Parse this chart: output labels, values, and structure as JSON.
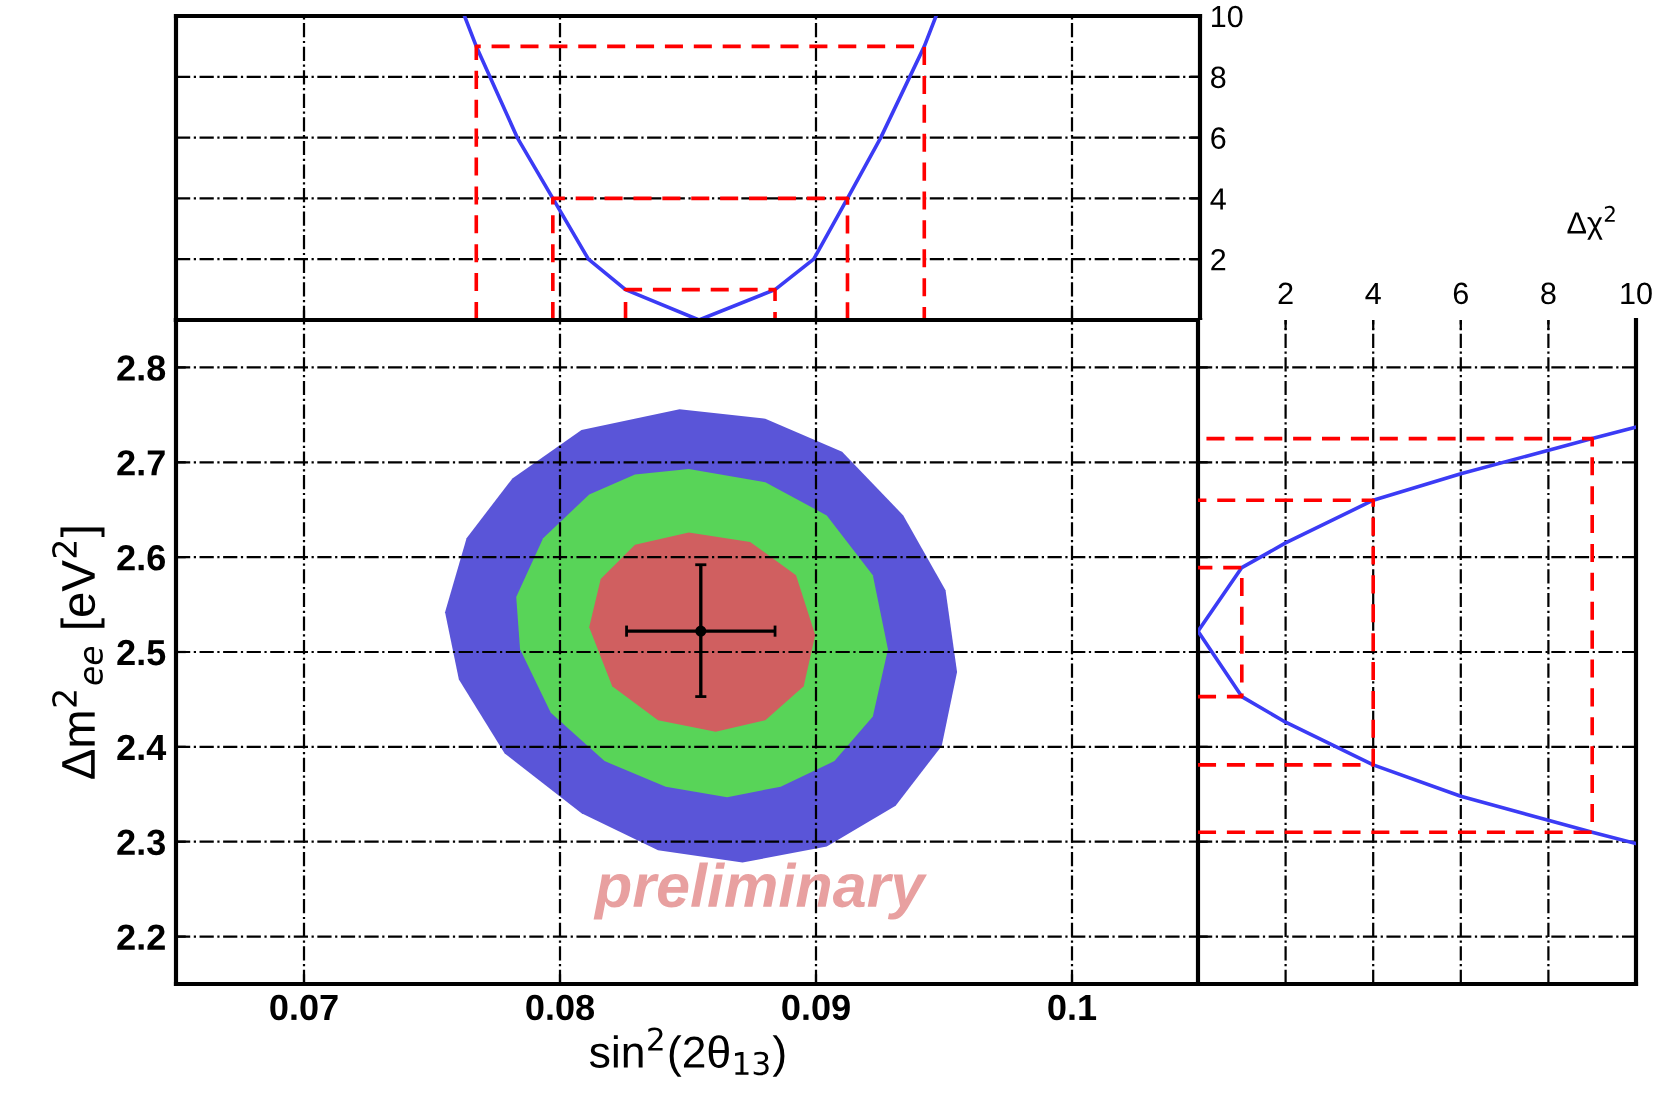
{
  "chart_data": [
    {
      "type": "line",
      "tick_labels": "y",
      "grid": true,
      "legend": false,
      "xlim": [
        0.065,
        0.105
      ],
      "xticks": [
        {
          "value": 0.07,
          "label": null
        },
        {
          "value": 0.08,
          "label": null
        },
        {
          "value": 0.09,
          "label": null
        },
        {
          "value": 0.1,
          "label": null
        }
      ],
      "ylim": [
        0,
        10
      ],
      "yticks": [
        2,
        4,
        6,
        8,
        10
      ],
      "series": [
        {
          "color": "#3b3bf5",
          "line_style": "solid",
          "x": [
            0.07627,
            0.07673,
            0.07833,
            0.07972,
            0.08111,
            0.08256,
            0.08543,
            0.0884,
            0.08991,
            0.09123,
            0.09253,
            0.09423,
            0.09469
          ],
          "values": [
            10,
            9,
            6,
            4,
            2,
            1,
            0,
            1,
            2,
            4,
            6,
            9,
            10
          ]
        },
        {
          "color": "#ff0000",
          "line_style": "dashed",
          "x": [
            0.08256,
            0.08256,
            0.0884,
            0.0884
          ],
          "values": [
            0,
            1,
            1,
            0
          ]
        },
        {
          "color": "#ff0000",
          "line_style": "dashed",
          "x": [
            0.07972,
            0.07972,
            0.09123,
            0.09123
          ],
          "values": [
            0,
            4,
            4,
            0
          ]
        },
        {
          "color": "#ff0000",
          "line_style": "dashed",
          "x": [
            0.07673,
            0.07673,
            0.09423,
            0.09423
          ],
          "values": [
            0,
            9,
            9,
            0
          ]
        }
      ]
    },
    {
      "type": "area",
      "tick_labels": true,
      "grid": true,
      "legend": false,
      "xlabel": "sin$^{2}$(2θ$_{13}$)",
      "ylabel": "Δm$^{2}$$_{ee}$ [eV$^{2}$]",
      "annotations": [
        "preliminary"
      ],
      "xlim": [
        0.065,
        0.105
      ],
      "xticks": [
        0.07,
        0.08,
        0.09,
        0.1
      ],
      "ylim": [
        2.15,
        2.85
      ],
      "yticks": [
        2.2,
        2.3,
        2.4,
        2.5,
        2.6,
        2.7,
        2.8
      ],
      "series": [
        {
          "color": "#5a55d8",
          "x": [
            0.08467,
            0.08802,
            0.09102,
            0.09341,
            0.09506,
            0.09551,
            0.09491,
            0.09311,
            0.09042,
            0.08713,
            0.08383,
            0.08084,
            0.07784,
            0.07605,
            0.07551,
            0.07635,
            0.07814,
            0.08084
          ],
          "values": [
            2.756,
            2.746,
            2.711,
            2.644,
            2.565,
            2.479,
            2.401,
            2.338,
            2.295,
            2.278,
            2.291,
            2.33,
            2.393,
            2.471,
            2.542,
            2.62,
            2.683,
            2.734
          ]
        },
        {
          "color": "#58d458",
          "x": [
            0.08503,
            0.08802,
            0.09042,
            0.09222,
            0.09281,
            0.09222,
            0.09072,
            0.08862,
            0.08653,
            0.08413,
            0.08174,
            0.07964,
            0.07844,
            0.07829,
            0.07934,
            0.08114,
            0.08293
          ],
          "values": [
            2.693,
            2.679,
            2.644,
            2.581,
            2.503,
            2.432,
            2.385,
            2.358,
            2.347,
            2.358,
            2.385,
            2.436,
            2.503,
            2.558,
            2.62,
            2.666,
            2.687
          ]
        },
        {
          "color": "#d05f60",
          "x": [
            0.08503,
            0.08743,
            0.08922,
            0.08997,
            0.08952,
            0.08802,
            0.08608,
            0.08383,
            0.08204,
            0.08114,
            0.08159,
            0.08293
          ],
          "values": [
            2.626,
            2.616,
            2.581,
            2.518,
            2.464,
            2.428,
            2.416,
            2.428,
            2.464,
            2.526,
            2.577,
            2.613
          ]
        },
        {
          "type": "scatter",
          "color": "#000000",
          "marker": "circle",
          "x": [
            0.0855
          ],
          "values": [
            2.522
          ],
          "errors": [
            [
              2.453,
              2.592
            ]
          ],
          "xerrors": [
            [
              0.0826,
              0.0884
            ]
          ]
        }
      ]
    },
    {
      "type": "line",
      "tick_labels": "x",
      "grid": true,
      "legend": false,
      "xlabel": "Δχ$^{2}$",
      "xlim": [
        0,
        10
      ],
      "xticks": [
        2,
        4,
        6,
        8,
        10
      ],
      "ylim": [
        2.15,
        2.85
      ],
      "yticks": [
        {
          "value": 2.2,
          "label": null
        },
        {
          "value": 2.3,
          "label": null
        },
        {
          "value": 2.4,
          "label": null
        },
        {
          "value": 2.5,
          "label": null
        },
        {
          "value": 2.6,
          "label": null
        },
        {
          "value": 2.7,
          "label": null
        },
        {
          "value": 2.8,
          "label": null
        }
      ],
      "series": [
        {
          "color": "#3b3bf5",
          "line_style": "solid",
          "x": [
            10,
            9,
            6,
            4,
            2,
            1,
            0,
            1,
            2,
            4,
            6,
            9,
            10
          ],
          "values": [
            2.298,
            2.31,
            2.348,
            2.381,
            2.426,
            2.453,
            2.522,
            2.589,
            2.615,
            2.66,
            2.688,
            2.725,
            2.737
          ]
        },
        {
          "color": "#ff0000",
          "line_style": "dashed",
          "x": [
            0,
            1,
            1,
            0
          ],
          "values": [
            2.453,
            2.453,
            2.589,
            2.589
          ]
        },
        {
          "color": "#ff0000",
          "line_style": "dashed",
          "x": [
            0,
            4,
            4,
            0
          ],
          "values": [
            2.381,
            2.381,
            2.66,
            2.66
          ]
        },
        {
          "color": "#ff0000",
          "line_style": "dashed",
          "x": [
            0,
            9,
            9,
            0
          ],
          "values": [
            2.31,
            2.31,
            2.725,
            2.725
          ]
        }
      ]
    }
  ]
}
